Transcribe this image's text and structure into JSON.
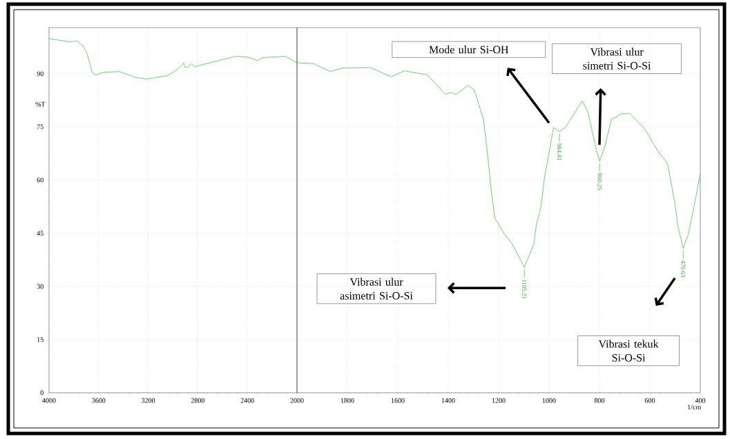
{
  "chart_data": [
    {
      "type": "line",
      "ylabel": "%T",
      "x": [
        4000,
        3838,
        3773,
        3718,
        3690,
        3653,
        3625,
        3560,
        3432,
        3300,
        3209,
        3041,
        2958,
        2915,
        2903,
        2875,
        2851,
        2826,
        2492,
        2400,
        2319,
        2279,
        2095,
        2000
      ],
      "series": [
        {
          "color": "#3ccc3c",
          "values": [
            99.9,
            99.0,
            99.2,
            97.5,
            95.3,
            90.4,
            89.6,
            90.4,
            90.6,
            88.9,
            88.5,
            89.5,
            91.4,
            93.0,
            91.8,
            92.0,
            92.8,
            92.0,
            94.9,
            94.7,
            93.7,
            94.5,
            94.9,
            93.1
          ]
        }
      ],
      "xlim": [
        4000,
        2000
      ],
      "xticks": [
        4000,
        3600,
        3200,
        2800,
        2400,
        2000
      ],
      "ylim": [
        0,
        103
      ],
      "yticks": [
        0,
        15,
        30,
        45,
        60,
        75,
        90
      ],
      "grid": true,
      "marker": "none",
      "line_style": "solid"
    },
    {
      "type": "line",
      "xlabel": "1/cm",
      "x": [
        2000,
        1932,
        1868,
        1817,
        1753,
        1708,
        1626,
        1575,
        1484,
        1411,
        1388,
        1370,
        1320,
        1297,
        1260,
        1242,
        1228,
        1215,
        1178,
        1146,
        1098,
        1060,
        1050,
        1032,
        1019,
        982,
        959,
        936,
        868,
        845,
        813,
        799,
        777,
        753,
        712,
        680,
        621,
        567,
        530,
        503,
        489,
        468,
        448,
        425,
        400
      ],
      "series": [
        {
          "color": "#3ccc3c",
          "values": [
            93.1,
            92.8,
            90.6,
            91.6,
            91.7,
            91.7,
            89.1,
            90.8,
            89.7,
            84.2,
            84.7,
            84.1,
            86.7,
            85.5,
            77.1,
            66.0,
            56.3,
            49.2,
            44.9,
            42.0,
            35.4,
            42.0,
            47.5,
            52.4,
            60.2,
            74.8,
            73.7,
            74.8,
            82.3,
            79.0,
            68.6,
            65.3,
            69.9,
            77.1,
            78.7,
            78.8,
            74.5,
            68.0,
            64.7,
            54.4,
            47.2,
            40.7,
            44.6,
            52.4,
            61.8
          ]
        }
      ],
      "xlim": [
        2000,
        400
      ],
      "xticks": [
        1800,
        1600,
        1400,
        1200,
        1000,
        800,
        600,
        400
      ],
      "ylim": [
        0,
        103
      ],
      "yticks": [
        0,
        15,
        30,
        45,
        60,
        75,
        90
      ],
      "tick_labels": "x",
      "grid": true,
      "marker": "none",
      "line_style": "solid",
      "annotations": [
        {
          "text": "1105.21",
          "x": 1098,
          "y": 35.4
        },
        {
          "text": "964.41",
          "x": 959,
          "y": 73.7
        },
        {
          "text": "800.25",
          "x": 799,
          "y": 65.3
        },
        {
          "text": "470.63",
          "x": 468,
          "y": 40.7
        },
        "Mode ulur Si-OH",
        "Vibrasi ulur simetri Si-O-Si",
        "Vibrasi ulur asimetri Si-O-Si",
        "Vibrasi tekuk Si-O-Si"
      ]
    }
  ]
}
